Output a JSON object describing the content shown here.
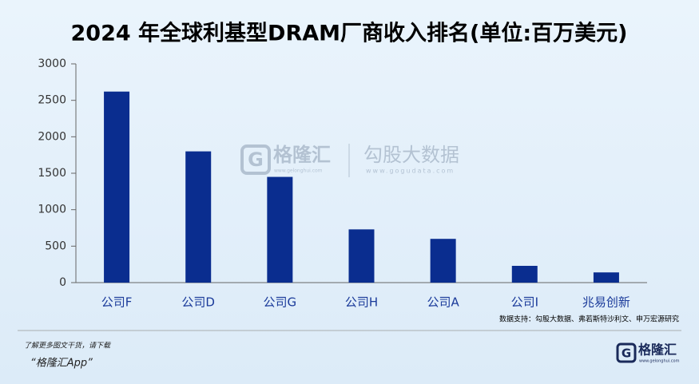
{
  "chart_data": {
    "type": "bar",
    "title": "2024 年全球利基型DRAM厂商收入排名(单位:百万美元)",
    "categories": [
      "公司F",
      "公司D",
      "公司G",
      "公司H",
      "公司A",
      "公司I",
      "兆易创新"
    ],
    "values": [
      2620,
      1800,
      1450,
      730,
      600,
      230,
      140
    ],
    "color": "#0a2d8f",
    "ylim": [
      0,
      3000
    ],
    "yticks": [
      0,
      500,
      1000,
      1500,
      2000,
      2500,
      3000
    ],
    "grid": false,
    "source": "数据支持：勾股大数据、弗若斯特沙利文、申万宏源研究"
  },
  "watermark": {
    "brand": "格隆汇",
    "brand_url": "www.gelonghui.com",
    "data_brand": "勾股大数据",
    "data_url": "www.gogudata.com"
  },
  "footer": {
    "line1": "了解更多图文干货，请下载",
    "line2": "“格隆汇App”",
    "logo_letter": "G",
    "logo_text": "格隆汇",
    "logo_url": "www.gelonghui.com"
  }
}
